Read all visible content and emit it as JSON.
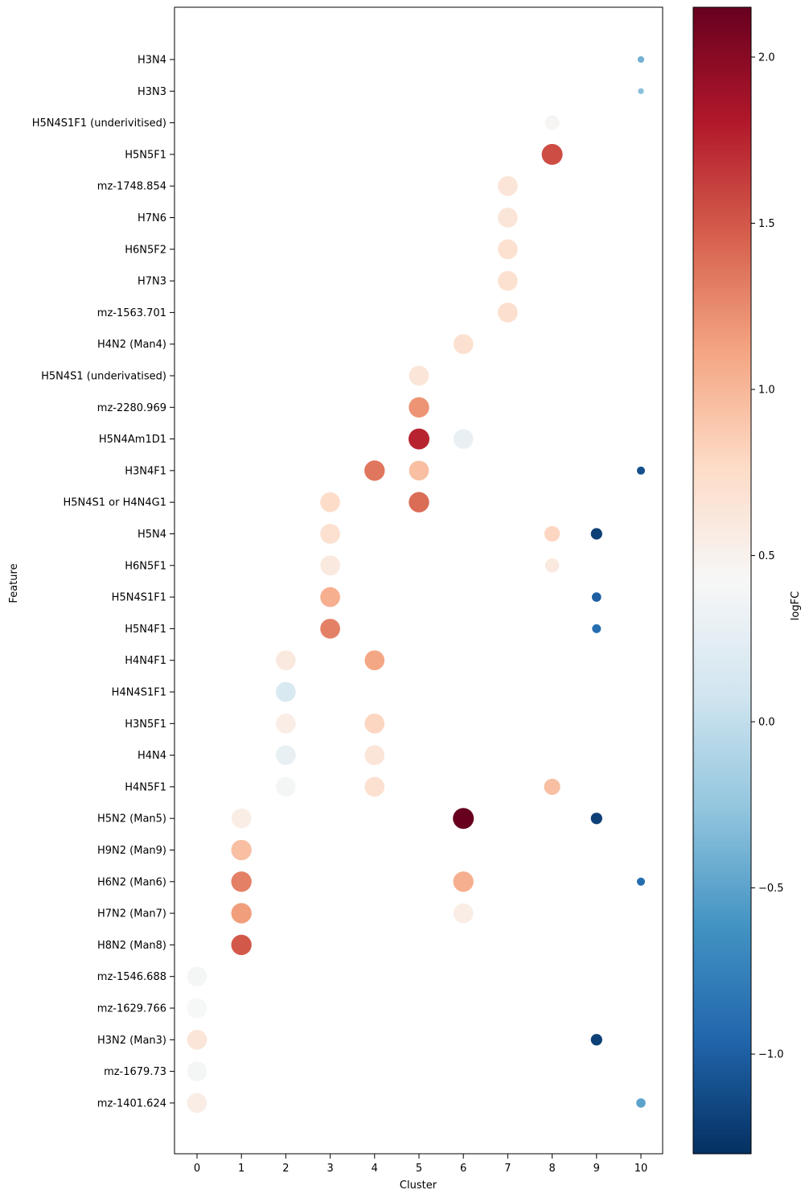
{
  "chart_data": {
    "type": "scatter",
    "subtype": "dot-plot",
    "title": "",
    "xlabel": "Cluster",
    "ylabel": "Feature",
    "x_categories": [
      "0",
      "1",
      "2",
      "3",
      "4",
      "5",
      "6",
      "7",
      "8",
      "9",
      "10"
    ],
    "y_categories_top_to_bottom": [
      "H3N4",
      "H3N3",
      "H5N4S1F1 (underivitised)",
      "H5N5F1",
      "mz-1748.854",
      "H7N6",
      "H6N5F2",
      "H7N3",
      "mz-1563.701",
      "H4N2 (Man4)",
      "H5N4S1 (underivatised)",
      "mz-2280.969",
      "H5N4Am1D1",
      "H3N4F1",
      "H5N4S1 or H4N4G1",
      "H5N4",
      "H6N5F1",
      "H5N4S1F1",
      "H5N4F1",
      "H4N4F1",
      "H4N4S1F1",
      "H3N5F1",
      "H4N4",
      "H4N5F1",
      "H5N2 (Man5)",
      "H9N2 (Man9)",
      "H6N2 (Man6)",
      "H7N2 (Man7)",
      "H8N2 (Man8)",
      "mz-1546.688",
      "mz-1629.766",
      "H3N2 (Man3)",
      "mz-1679.73",
      "mz-1401.624"
    ],
    "size_encodes": "relative dot size",
    "points": [
      {
        "cluster": 10,
        "feature": "H3N4",
        "logFC": -0.4,
        "size": 0.1
      },
      {
        "cluster": 10,
        "feature": "H3N3",
        "logFC": -0.3,
        "size": 0.08
      },
      {
        "cluster": 8,
        "feature": "H5N4S1F1 (underivitised)",
        "logFC": 0.45,
        "size": 0.5
      },
      {
        "cluster": 8,
        "feature": "H5N5F1",
        "logFC": 1.55,
        "size": 1.0
      },
      {
        "cluster": 7,
        "feature": "mz-1748.854",
        "logFC": 0.65,
        "size": 0.9
      },
      {
        "cluster": 7,
        "feature": "H7N6",
        "logFC": 0.65,
        "size": 0.9
      },
      {
        "cluster": 7,
        "feature": "H6N5F2",
        "logFC": 0.7,
        "size": 0.9
      },
      {
        "cluster": 7,
        "feature": "H7N3",
        "logFC": 0.7,
        "size": 0.9
      },
      {
        "cluster": 7,
        "feature": "mz-1563.701",
        "logFC": 0.72,
        "size": 0.9
      },
      {
        "cluster": 6,
        "feature": "H4N2 (Man4)",
        "logFC": 0.7,
        "size": 0.9
      },
      {
        "cluster": 5,
        "feature": "H5N4S1 (underivatised)",
        "logFC": 0.65,
        "size": 0.9
      },
      {
        "cluster": 5,
        "feature": "mz-2280.969",
        "logFC": 1.2,
        "size": 0.95
      },
      {
        "cluster": 5,
        "feature": "H5N4Am1D1",
        "logFC": 1.75,
        "size": 1.0
      },
      {
        "cluster": 6,
        "feature": "H5N4Am1D1",
        "logFC": 0.3,
        "size": 0.9
      },
      {
        "cluster": 4,
        "feature": "H3N4F1",
        "logFC": 1.35,
        "size": 0.95
      },
      {
        "cluster": 5,
        "feature": "H3N4F1",
        "logFC": 0.95,
        "size": 0.9
      },
      {
        "cluster": 10,
        "feature": "H3N4F1",
        "logFC": -1.1,
        "size": 0.15
      },
      {
        "cluster": 3,
        "feature": "H5N4S1 or H4N4G1",
        "logFC": 0.75,
        "size": 0.9
      },
      {
        "cluster": 5,
        "feature": "H5N4S1 or H4N4G1",
        "logFC": 1.4,
        "size": 0.95
      },
      {
        "cluster": 3,
        "feature": "H5N4",
        "logFC": 0.7,
        "size": 0.9
      },
      {
        "cluster": 8,
        "feature": "H5N4",
        "logFC": 0.8,
        "size": 0.55
      },
      {
        "cluster": 9,
        "feature": "H5N4",
        "logFC": -1.2,
        "size": 0.3
      },
      {
        "cluster": 3,
        "feature": "H6N5F1",
        "logFC": 0.6,
        "size": 0.9
      },
      {
        "cluster": 8,
        "feature": "H6N5F1",
        "logFC": 0.6,
        "size": 0.45
      },
      {
        "cluster": 3,
        "feature": "H5N4S1F1",
        "logFC": 1.05,
        "size": 0.9
      },
      {
        "cluster": 9,
        "feature": "H5N4S1F1",
        "logFC": -1.0,
        "size": 0.2
      },
      {
        "cluster": 3,
        "feature": "H5N4F1",
        "logFC": 1.3,
        "size": 0.9
      },
      {
        "cluster": 9,
        "feature": "H5N4F1",
        "logFC": -0.9,
        "size": 0.18
      },
      {
        "cluster": 2,
        "feature": "H4N4F1",
        "logFC": 0.6,
        "size": 0.9
      },
      {
        "cluster": 4,
        "feature": "H4N4F1",
        "logFC": 1.1,
        "size": 0.9
      },
      {
        "cluster": 2,
        "feature": "H4N4S1F1",
        "logFC": 0.15,
        "size": 0.9
      },
      {
        "cluster": 2,
        "feature": "H3N5F1",
        "logFC": 0.55,
        "size": 0.9
      },
      {
        "cluster": 4,
        "feature": "H3N5F1",
        "logFC": 0.8,
        "size": 0.9
      },
      {
        "cluster": 2,
        "feature": "H4N4",
        "logFC": 0.3,
        "size": 0.9
      },
      {
        "cluster": 4,
        "feature": "H4N4",
        "logFC": 0.65,
        "size": 0.9
      },
      {
        "cluster": 2,
        "feature": "H4N5F1",
        "logFC": 0.4,
        "size": 0.9
      },
      {
        "cluster": 4,
        "feature": "H4N5F1",
        "logFC": 0.7,
        "size": 0.9
      },
      {
        "cluster": 8,
        "feature": "H4N5F1",
        "logFC": 0.95,
        "size": 0.6
      },
      {
        "cluster": 1,
        "feature": "H5N2 (Man5)",
        "logFC": 0.55,
        "size": 0.9
      },
      {
        "cluster": 6,
        "feature": "H5N2 (Man5)",
        "logFC": 2.15,
        "size": 1.0
      },
      {
        "cluster": 9,
        "feature": "H5N2 (Man5)",
        "logFC": -1.2,
        "size": 0.3
      },
      {
        "cluster": 1,
        "feature": "H9N2 (Man9)",
        "logFC": 0.95,
        "size": 0.95
      },
      {
        "cluster": 1,
        "feature": "H6N2 (Man6)",
        "logFC": 1.3,
        "size": 0.95
      },
      {
        "cluster": 6,
        "feature": "H6N2 (Man6)",
        "logFC": 1.05,
        "size": 0.95
      },
      {
        "cluster": 10,
        "feature": "H6N2 (Man6)",
        "logFC": -0.9,
        "size": 0.15
      },
      {
        "cluster": 1,
        "feature": "H7N2 (Man7)",
        "logFC": 1.15,
        "size": 0.95
      },
      {
        "cluster": 6,
        "feature": "H7N2 (Man7)",
        "logFC": 0.55,
        "size": 0.9
      },
      {
        "cluster": 1,
        "feature": "H8N2 (Man8)",
        "logFC": 1.5,
        "size": 0.95
      },
      {
        "cluster": 0,
        "feature": "mz-1546.688",
        "logFC": 0.4,
        "size": 0.9
      },
      {
        "cluster": 0,
        "feature": "mz-1629.766",
        "logFC": 0.42,
        "size": 0.9
      },
      {
        "cluster": 0,
        "feature": "H3N2 (Man3)",
        "logFC": 0.65,
        "size": 0.9
      },
      {
        "cluster": 9,
        "feature": "H3N2 (Man3)",
        "logFC": -1.2,
        "size": 0.3
      },
      {
        "cluster": 0,
        "feature": "mz-1679.73",
        "logFC": 0.4,
        "size": 0.9
      },
      {
        "cluster": 0,
        "feature": "mz-1401.624",
        "logFC": 0.55,
        "size": 0.9
      },
      {
        "cluster": 10,
        "feature": "mz-1401.624",
        "logFC": -0.5,
        "size": 0.2
      }
    ],
    "colorbar": {
      "label": "logFC",
      "colormap": "RdBu_r",
      "range": [
        -1.3,
        2.15
      ],
      "ticks": [
        "−1.0",
        "−0.5",
        "0.0",
        "0.5",
        "1.0",
        "1.5",
        "2.0"
      ],
      "tick_values": [
        -1.0,
        -0.5,
        0.0,
        0.5,
        1.0,
        1.5,
        2.0
      ]
    },
    "grid": false
  }
}
